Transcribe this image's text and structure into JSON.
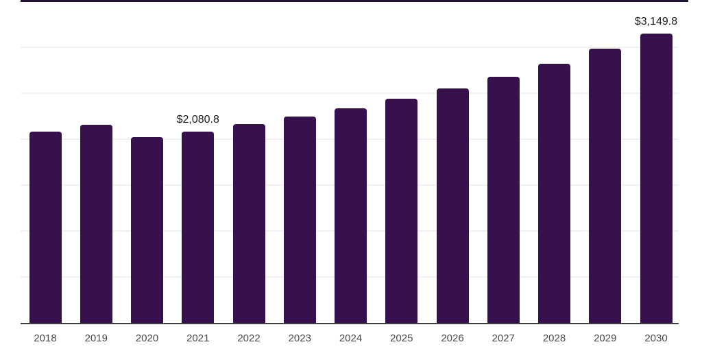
{
  "chart_data": {
    "type": "bar",
    "title": "",
    "categories": [
      "2018",
      "2019",
      "2020",
      "2021",
      "2022",
      "2023",
      "2024",
      "2025",
      "2026",
      "2027",
      "2028",
      "2029",
      "2030"
    ],
    "values": [
      2085,
      2158,
      2023,
      2080.8,
      2162,
      2245,
      2334,
      2439,
      2550,
      2677,
      2818,
      2982,
      3149.8
    ],
    "data_labels": [
      {
        "category": "2021",
        "text": "$2,080.8"
      },
      {
        "category": "2030",
        "text": "$3,149.8"
      }
    ],
    "xlabel": "",
    "ylabel": "",
    "ylim": [
      0,
      3500
    ],
    "gridline_step": 500,
    "grid": "horizontal-only, no y-axis tick labels",
    "legend": "none",
    "colors": {
      "bar": "#37114d",
      "top_border": "#1f1530",
      "axis_line": "#404040",
      "gridline": "#f1f1f3",
      "value_label": "#1a1a1a",
      "tick_label": "#4a4a4a",
      "background": "#ffffff"
    }
  }
}
